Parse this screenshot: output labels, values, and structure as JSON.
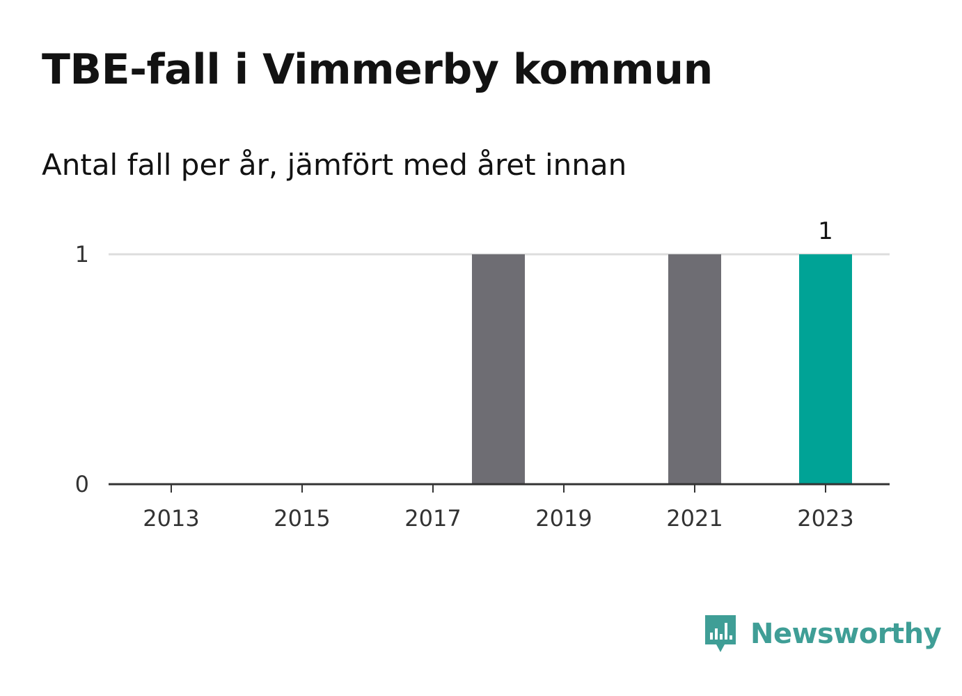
{
  "header": {
    "title": "TBE-fall i Vimmerby kommun",
    "subtitle": "Antal fall per år, jämfört med året innan"
  },
  "chart_data": {
    "type": "bar",
    "categories": [
      "2013",
      "2014",
      "2015",
      "2016",
      "2017",
      "2018",
      "2019",
      "2020",
      "2021",
      "2022",
      "2023"
    ],
    "values": [
      0,
      0,
      0,
      0,
      0,
      1,
      0,
      0,
      1,
      0,
      1
    ],
    "x_tick_labels": [
      "2013",
      "2015",
      "2017",
      "2019",
      "2021",
      "2023"
    ],
    "y_ticks": [
      0,
      1
    ],
    "ylim": [
      0,
      1
    ],
    "data_labels": [
      {
        "category": "2023",
        "text": "1"
      }
    ],
    "highlight_category": "2023",
    "grid": true,
    "colors": {
      "bar": "#6e6d73",
      "highlight": "#00a396",
      "grid": "#dddddd",
      "axis": "#333333"
    }
  },
  "branding": {
    "name": "Newsworthy",
    "icon": "newsworthy-logo-icon",
    "color": "#3f9e96"
  }
}
